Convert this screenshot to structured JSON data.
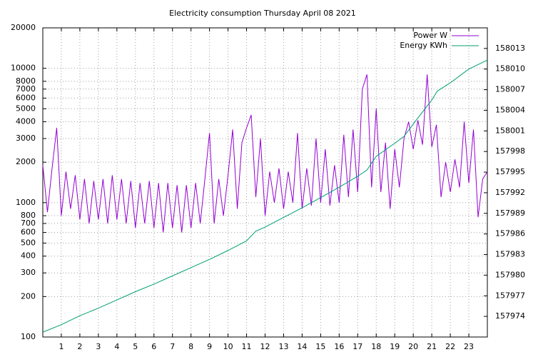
{
  "chart_data": {
    "type": "line",
    "title": "Electricity consumption Thursday April 08 2021",
    "xlim": [
      0,
      24
    ],
    "xticks": [
      1,
      2,
      3,
      4,
      5,
      6,
      7,
      8,
      9,
      10,
      11,
      12,
      13,
      14,
      15,
      16,
      17,
      18,
      19,
      20,
      21,
      22,
      23
    ],
    "ylim": [
      100,
      20000
    ],
    "ylog": true,
    "yticks": [
      100,
      200,
      300,
      400,
      500,
      600,
      700,
      800,
      1000,
      2000,
      3000,
      4000,
      5000,
      6000,
      7000,
      8000,
      10000,
      20000
    ],
    "y2lim": [
      157971,
      158016
    ],
    "y2ticks": [
      157974,
      157977,
      157980,
      157983,
      157986,
      157989,
      157992,
      157995,
      157998,
      158001,
      158004,
      158007,
      158010,
      158013
    ],
    "grid": true,
    "legend": "top-right",
    "series": [
      {
        "name": "Power W",
        "color": "#9400d3",
        "x": [
          0,
          0.25,
          0.5,
          0.75,
          1,
          1.25,
          1.5,
          1.75,
          2,
          2.25,
          2.5,
          2.75,
          3,
          3.25,
          3.5,
          3.75,
          4,
          4.25,
          4.5,
          4.75,
          5,
          5.25,
          5.5,
          5.75,
          6,
          6.25,
          6.5,
          6.75,
          7,
          7.25,
          7.5,
          7.75,
          8,
          8.25,
          8.5,
          8.75,
          9,
          9.25,
          9.5,
          9.75,
          10,
          10.25,
          10.5,
          10.75,
          11,
          11.25,
          11.5,
          11.75,
          12,
          12.25,
          12.5,
          12.75,
          13,
          13.25,
          13.5,
          13.75,
          14,
          14.25,
          14.5,
          14.75,
          15,
          15.25,
          15.5,
          15.75,
          16,
          16.25,
          16.5,
          16.75,
          17,
          17.25,
          17.5,
          17.75,
          18,
          18.25,
          18.5,
          18.75,
          19,
          19.25,
          19.5,
          19.75,
          20,
          20.25,
          20.5,
          20.75,
          21,
          21.25,
          21.5,
          21.75,
          22,
          22.25,
          22.5,
          22.75,
          23,
          23.25,
          23.5,
          23.75,
          24
        ],
        "values": [
          1900,
          850,
          1800,
          3600,
          800,
          1700,
          900,
          1600,
          750,
          1500,
          700,
          1450,
          750,
          1500,
          700,
          1600,
          750,
          1500,
          700,
          1450,
          650,
          1400,
          700,
          1450,
          650,
          1400,
          600,
          1400,
          650,
          1350,
          600,
          1350,
          650,
          1400,
          700,
          1500,
          3300,
          700,
          1500,
          800,
          1600,
          3500,
          900,
          2800,
          3600,
          4500,
          1100,
          3000,
          800,
          1700,
          1000,
          1800,
          900,
          1700,
          1000,
          3300,
          900,
          1800,
          950,
          3000,
          1000,
          2500,
          950,
          1900,
          1000,
          3200,
          1100,
          3500,
          1200,
          7000,
          9000,
          1300,
          5000,
          1200,
          2800,
          900,
          2500,
          1300,
          3000,
          4000,
          2500,
          4100,
          2700,
          9000,
          2600,
          3800,
          1100,
          2000,
          1200,
          2100,
          1300,
          4000,
          1400,
          3500,
          780,
          1500,
          1700
        ]
      },
      {
        "name": "Energy KWh",
        "color": "#009e73",
        "axis": "y2",
        "x": [
          0,
          1,
          2,
          3,
          4,
          5,
          6,
          7,
          8,
          9,
          10,
          11,
          11.5,
          12,
          13,
          14,
          15,
          16,
          17,
          17.5,
          18,
          19,
          19.5,
          20,
          21,
          21.3,
          22,
          23,
          24
        ],
        "values": [
          157971.7,
          157972.8,
          157974.1,
          157975.2,
          157976.4,
          157977.6,
          157978.7,
          157979.9,
          157981.1,
          157982.3,
          157983.6,
          157985.0,
          157986.4,
          157987.0,
          157988.4,
          157989.8,
          157991.3,
          157992.8,
          157994.4,
          157995.3,
          157997.3,
          157999.2,
          158000.2,
          158002.0,
          158005.5,
          158006.8,
          158008.0,
          158010.0,
          158011.3
        ]
      }
    ]
  }
}
